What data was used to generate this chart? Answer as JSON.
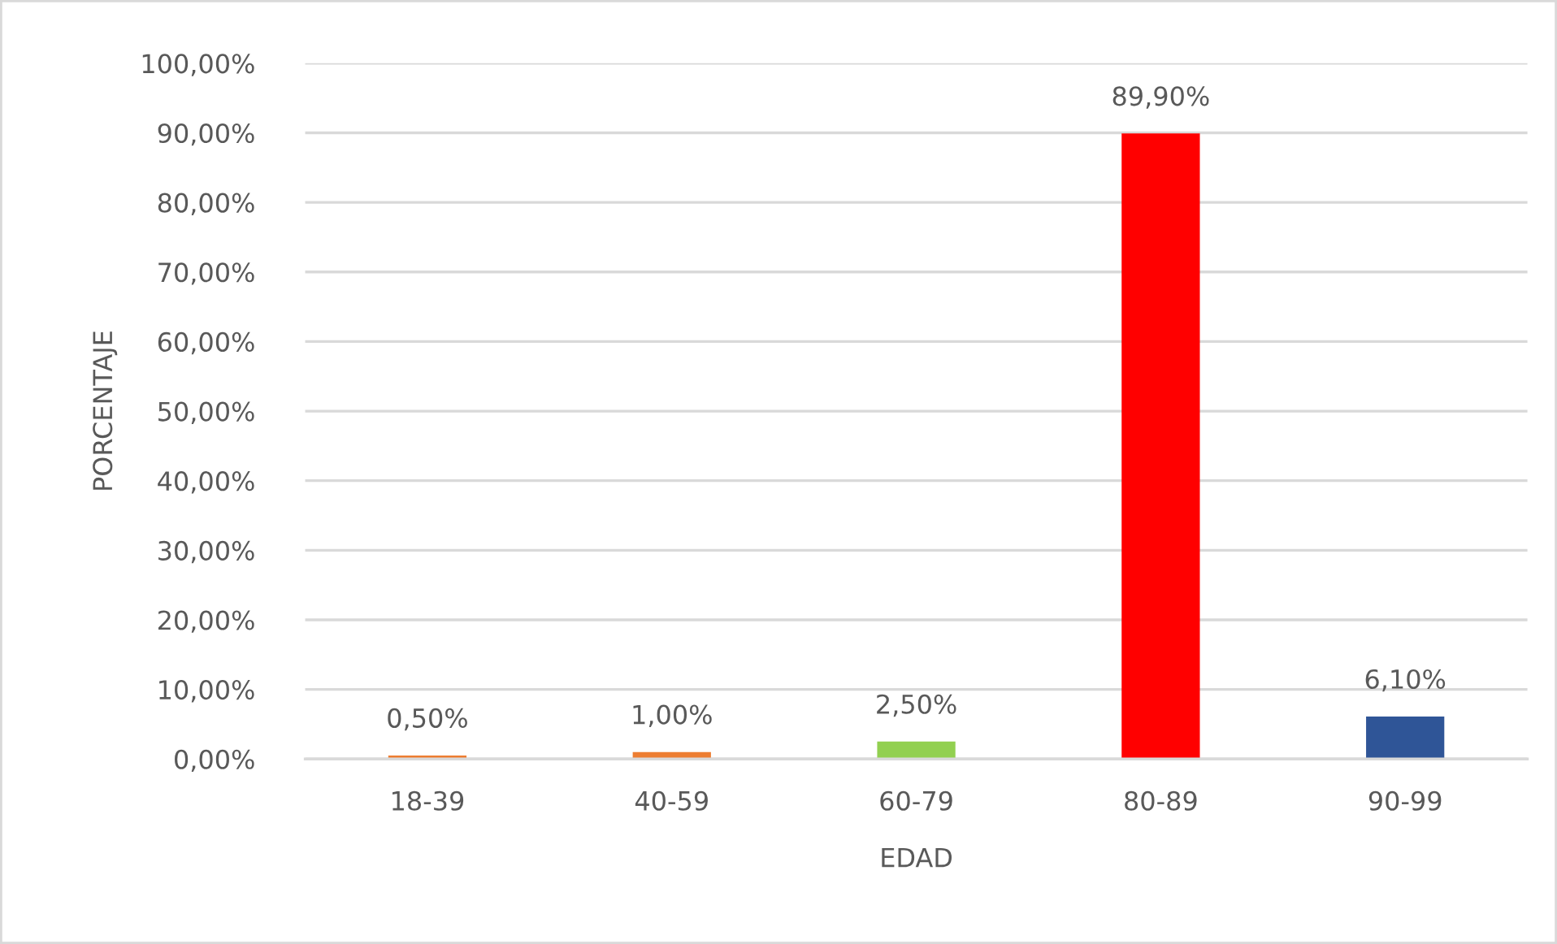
{
  "chart_data": {
    "type": "bar",
    "xlabel": "EDAD",
    "ylabel": "PORCENTAJE",
    "categories": [
      "18-39",
      "40-59",
      "60-79",
      "80-89",
      "90-99"
    ],
    "values": [
      0.5,
      1.0,
      2.5,
      89.9,
      6.1
    ],
    "colors": [
      "#ed7d31",
      "#ed7d31",
      "#92d050",
      "#ff0000",
      "#2f5597"
    ],
    "value_labels": [
      "0,50%",
      "1,00%",
      "2,50%",
      "89,90%",
      "6,10%"
    ],
    "ylim": [
      0,
      100
    ],
    "yticks": [
      {
        "value": 0,
        "label": "0,00%"
      },
      {
        "value": 10,
        "label": "10,00%"
      },
      {
        "value": 20,
        "label": "20,00%"
      },
      {
        "value": 30,
        "label": "30,00%"
      },
      {
        "value": 40,
        "label": "40,00%"
      },
      {
        "value": 50,
        "label": "50,00%"
      },
      {
        "value": 60,
        "label": "60,00%"
      },
      {
        "value": 70,
        "label": "70,00%"
      },
      {
        "value": 80,
        "label": "80,00%"
      },
      {
        "value": 90,
        "label": "90,00%"
      },
      {
        "value": 100,
        "label": "100,00%"
      }
    ],
    "grid": "y"
  }
}
